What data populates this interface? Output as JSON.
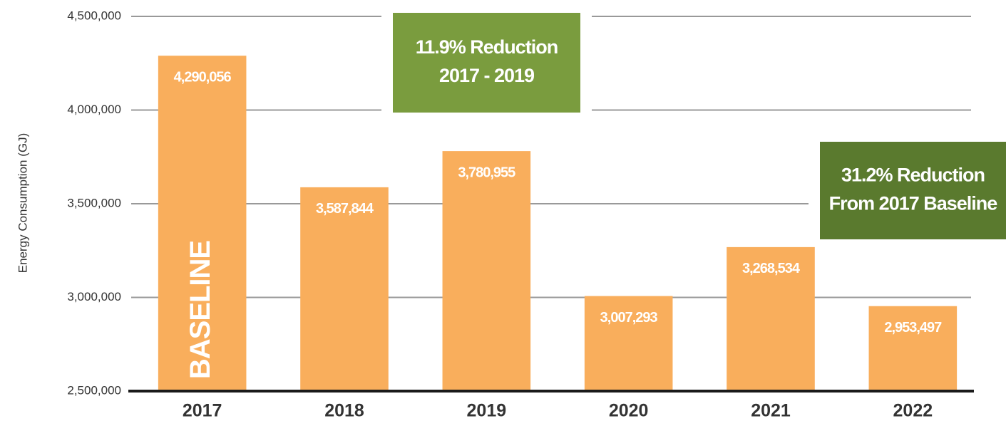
{
  "chart_data": {
    "type": "bar",
    "y_label": "Energy Consumption (GJ)",
    "categories": [
      "2017",
      "2018",
      "2019",
      "2020",
      "2021",
      "2022"
    ],
    "values": [
      4290056,
      3587844,
      3780955,
      3007293,
      3268534,
      2953497
    ],
    "value_labels": [
      "4,290,056",
      "3,587,844",
      "3,780,955",
      "3,007,293",
      "3,268,534",
      "2,953,497"
    ],
    "color": "#f9ae5c",
    "ylim": [
      2500000,
      4500000
    ],
    "yticks": [
      {
        "value": 2500000,
        "label": "2,500,000"
      },
      {
        "value": 3000000,
        "label": "3,000,000"
      },
      {
        "value": 3500000,
        "label": "3,500,000"
      },
      {
        "value": 4000000,
        "label": "4,000,000"
      },
      {
        "value": 4500000,
        "label": "4,500,000"
      }
    ],
    "grid": true,
    "baseline_label": "BASELINE",
    "annotations": [
      {
        "text": [
          "11.9% Reduction",
          "2017 - 2019"
        ],
        "color": "#7a9c3e"
      },
      {
        "text": [
          "31.2% Reduction",
          "From 2017 Baseline"
        ],
        "color": "#5a7a2e"
      }
    ]
  }
}
